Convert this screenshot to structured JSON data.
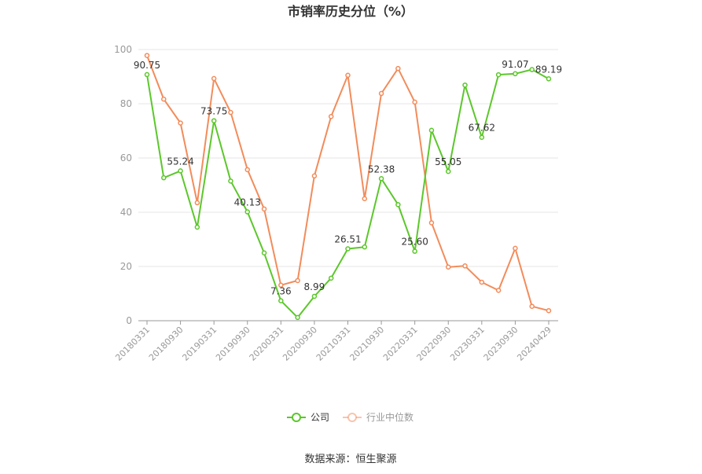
{
  "chart_data": {
    "type": "line",
    "title": "市销率历史分位（%）",
    "ylim": [
      0,
      100
    ],
    "yticks": [
      0,
      20,
      40,
      60,
      80,
      100
    ],
    "x_tick_labels": [
      "20180331",
      "20180930",
      "20190331",
      "20190930",
      "20200331",
      "20200930",
      "20210331",
      "20210930",
      "20220331",
      "20220930",
      "20230331",
      "20230930",
      "20240429"
    ],
    "x_tick_index": [
      0,
      2,
      4,
      6,
      8,
      10,
      12,
      14,
      16,
      18,
      20,
      22,
      24
    ],
    "point_count": 25,
    "series": [
      {
        "name": "公司",
        "color": "#5cc72b",
        "values": [
          90.75,
          52.7,
          55.24,
          34.5,
          73.75,
          51.5,
          40.13,
          25.0,
          7.36,
          1.2,
          8.99,
          15.7,
          26.51,
          27.2,
          52.38,
          42.8,
          25.6,
          70.2,
          55.05,
          86.9,
          67.62,
          90.7,
          91.07,
          92.6,
          89.19
        ],
        "labels": {
          "0": "90.75",
          "2": "55.24",
          "4": "73.75",
          "6": "40.13",
          "8": "7.36",
          "10": "8.99",
          "12": "26.51",
          "14": "52.38",
          "16": "25.60",
          "18": "55.05",
          "20": "67.62",
          "22": "91.07",
          "24": "89.19"
        }
      },
      {
        "name": "行业中位数",
        "color": "#f28c5b",
        "values": [
          97.8,
          81.7,
          72.9,
          43.5,
          89.3,
          76.8,
          55.7,
          41.2,
          13.1,
          14.8,
          53.4,
          75.3,
          90.5,
          45.0,
          83.8,
          93.0,
          80.6,
          36.1,
          19.8,
          20.2,
          14.2,
          11.2,
          26.7,
          5.3,
          3.7
        ],
        "labels": {}
      }
    ],
    "grid": true,
    "legend_position": "bottom-center"
  },
  "footer": {
    "source": "数据来源：恒生聚源"
  }
}
